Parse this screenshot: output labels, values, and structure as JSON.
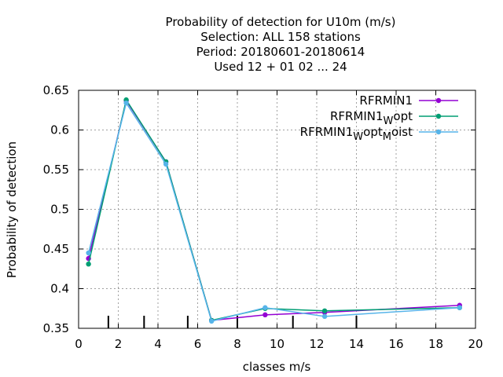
{
  "chart_data": {
    "type": "line",
    "title_lines": [
      "Probability of detection  for U10m (m/s)",
      "Selection: ALL    158 stations",
      "Period: 20180601-20180614",
      "Used  12 + 01 02 ... 24"
    ],
    "xlabel": "classes m/s",
    "ylabel": "Probability of detection",
    "xlim": [
      0,
      20
    ],
    "ylim": [
      0.35,
      0.65
    ],
    "xticks": [
      0,
      2,
      4,
      6,
      8,
      10,
      12,
      14,
      16,
      18,
      20
    ],
    "yticks": [
      0.35,
      0.4,
      0.45,
      0.5,
      0.55,
      0.6,
      0.65
    ],
    "ytick_labels": [
      "0.35",
      "0.4",
      "0.45",
      "0.5",
      "0.55",
      "0.6",
      "0.65"
    ],
    "grid": true,
    "legend_position": "top-right",
    "class_boundaries": [
      1.5,
      3.3,
      5.5,
      8,
      10.8,
      14
    ],
    "series": [
      {
        "name": "RFRMIN1",
        "name_parts": [
          {
            "t": "RFRMIN1"
          }
        ],
        "color": "#9400d3",
        "marker": "circle",
        "x": [
          0.5,
          2.4,
          4.4,
          6.7,
          9.4,
          12.4,
          19.2
        ],
        "y": [
          0.438,
          0.637,
          0.56,
          0.36,
          0.367,
          0.37,
          0.379
        ]
      },
      {
        "name": "RFRMIN1_W opt",
        "name_parts": [
          {
            "t": "RFRMIN1"
          },
          {
            "t": "W",
            "sub": true
          },
          {
            "t": "opt"
          }
        ],
        "color": "#009e73",
        "marker": "circle",
        "x": [
          0.5,
          2.4,
          4.4,
          6.7,
          9.4,
          12.4,
          19.2
        ],
        "y": [
          0.431,
          0.638,
          0.56,
          0.36,
          0.375,
          0.372,
          0.376
        ]
      },
      {
        "name": "RFRMIN1_W opt_M oist",
        "name_parts": [
          {
            "t": "RFRMIN1"
          },
          {
            "t": "W",
            "sub": true
          },
          {
            "t": "opt"
          },
          {
            "t": "M",
            "sub": true
          },
          {
            "t": "oist"
          }
        ],
        "color": "#56b4e9",
        "marker": "circle",
        "x": [
          0.5,
          2.4,
          4.4,
          6.7,
          9.4,
          12.4,
          19.2
        ],
        "y": [
          0.445,
          0.634,
          0.557,
          0.359,
          0.376,
          0.365,
          0.376
        ]
      }
    ]
  }
}
